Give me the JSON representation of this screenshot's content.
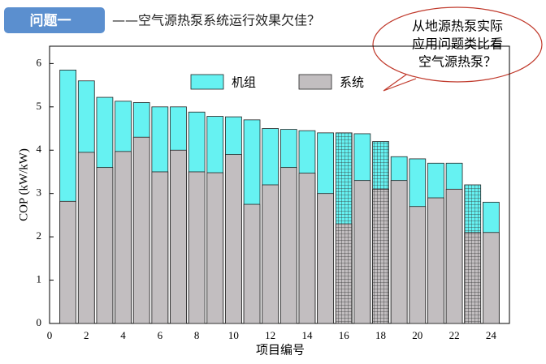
{
  "header": {
    "tag": "问题一",
    "title": "——空气源热泵系统运行效果欠佳？",
    "bubble": [
      "从地源热泵实际",
      "应用问题类比看",
      "空气源热泵？"
    ]
  },
  "chart_data": {
    "type": "bar",
    "mode": "overlap",
    "xlabel": "项目编号",
    "ylabel": "COP (kW/kW)",
    "x": [
      1,
      2,
      3,
      4,
      5,
      6,
      7,
      8,
      9,
      10,
      11,
      12,
      13,
      14,
      15,
      16,
      17,
      18,
      19,
      20,
      21,
      22,
      23,
      24
    ],
    "series": [
      {
        "name": "机组",
        "color": "#66f2f2",
        "values": [
          5.85,
          5.6,
          5.22,
          5.13,
          5.1,
          5.0,
          5.0,
          4.88,
          4.78,
          4.77,
          4.7,
          4.5,
          4.48,
          4.45,
          4.4,
          4.4,
          4.38,
          4.2,
          3.85,
          3.8,
          3.7,
          3.7,
          3.2,
          2.8
        ]
      },
      {
        "name": "系统",
        "color": "#c2bec0",
        "values": [
          2.82,
          3.95,
          3.6,
          3.97,
          4.3,
          3.5,
          4.0,
          3.5,
          3.48,
          3.9,
          2.75,
          3.2,
          3.6,
          3.47,
          3.0,
          2.3,
          3.3,
          3.1,
          3.3,
          2.7,
          2.9,
          3.1,
          2.1,
          2.1
        ]
      }
    ],
    "hatched_x": [
      16,
      18,
      23
    ],
    "xlim": [
      0,
      25
    ],
    "xticks": [
      0,
      2,
      4,
      6,
      8,
      10,
      12,
      14,
      16,
      18,
      20,
      22,
      24
    ],
    "ylim": [
      0,
      6.4
    ],
    "yticks": [
      0,
      1,
      2,
      3,
      4,
      5,
      6
    ]
  }
}
